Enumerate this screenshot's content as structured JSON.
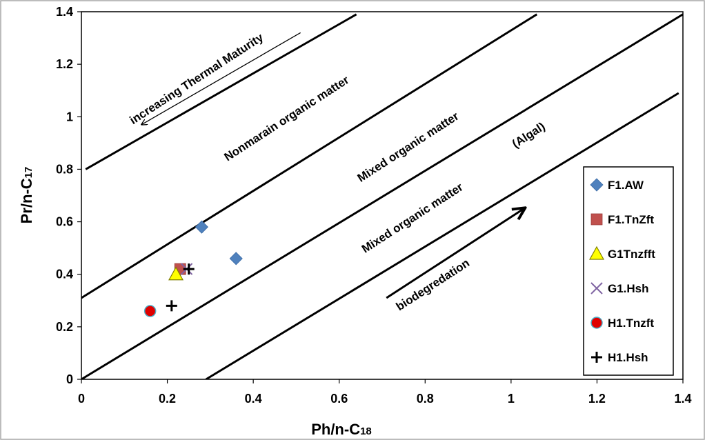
{
  "chart_data": {
    "type": "scatter",
    "xlabel_main": "Ph/n-C",
    "xlabel_sub": "18",
    "ylabel_main": "Pr/n-C",
    "ylabel_sub": "17",
    "xlim": [
      0,
      1.4
    ],
    "ylim": [
      0,
      1.4
    ],
    "xticks": [
      "0",
      "0.2",
      "0.4",
      "0.6",
      "0.8",
      "1",
      "1.2",
      "1.4"
    ],
    "yticks": [
      "0",
      "0.2",
      "0.4",
      "0.6",
      "0.8",
      "1",
      "1.2",
      "1.4"
    ],
    "grid": false,
    "legend_position": "right",
    "series": [
      {
        "name": "F1.AW",
        "marker": "diamond",
        "color": "#4f81bd",
        "x": [
          0.28,
          0.36
        ],
        "y": [
          0.58,
          0.46
        ]
      },
      {
        "name": "F1.TnZft",
        "marker": "square",
        "color": "#c0504d",
        "x": [
          0.23
        ],
        "y": [
          0.42
        ]
      },
      {
        "name": "G1Tnzfft",
        "marker": "triangle",
        "color": "#ffff00",
        "x": [
          0.22
        ],
        "y": [
          0.4
        ]
      },
      {
        "name": "G1.Hsh",
        "marker": "x",
        "color": "#8064a2",
        "x": [
          0.245
        ],
        "y": [
          0.42
        ]
      },
      {
        "name": "H1.Tnzft",
        "marker": "circle",
        "color": "#e00000",
        "x": [
          0.16
        ],
        "y": [
          0.26
        ]
      },
      {
        "name": "H1.Hsh",
        "marker": "plus",
        "color": "#000000",
        "x": [
          0.21,
          0.25
        ],
        "y": [
          0.28,
          0.42
        ]
      }
    ],
    "boundary_lines": [
      {
        "x1": 0.01,
        "y1": 0.8,
        "x2": 0.64,
        "y2": 1.39
      },
      {
        "x1": 0.0,
        "y1": 0.31,
        "x2": 1.06,
        "y2": 1.39
      },
      {
        "x1": 0.0,
        "y1": 0.0,
        "x2": 1.4,
        "y2": 1.39
      },
      {
        "x1": 0.29,
        "y1": 0.0,
        "x2": 1.39,
        "y2": 1.09
      }
    ],
    "arrows": [
      {
        "x1": 0.51,
        "y1": 1.32,
        "x2": 0.14,
        "y2": 0.97
      },
      {
        "x1": 0.71,
        "y1": 0.31,
        "x2": 1.03,
        "y2": 0.65
      }
    ],
    "annotations": [
      {
        "text": "increasing Thermal Maturity",
        "x": 0.12,
        "y": 0.97,
        "angle": -33
      },
      {
        "text": "Nonmarain organic matter",
        "x": 0.34,
        "y": 0.83,
        "angle": -33
      },
      {
        "text": "Mixed organic matter",
        "x": 0.65,
        "y": 0.75,
        "angle": -33
      },
      {
        "text": "(Algal)",
        "x": 1.01,
        "y": 0.88,
        "angle": -33
      },
      {
        "text": "Mixed organic matter",
        "x": 0.66,
        "y": 0.48,
        "angle": -33
      },
      {
        "text": "biodegredation",
        "x": 0.74,
        "y": 0.26,
        "angle": -33
      }
    ]
  }
}
